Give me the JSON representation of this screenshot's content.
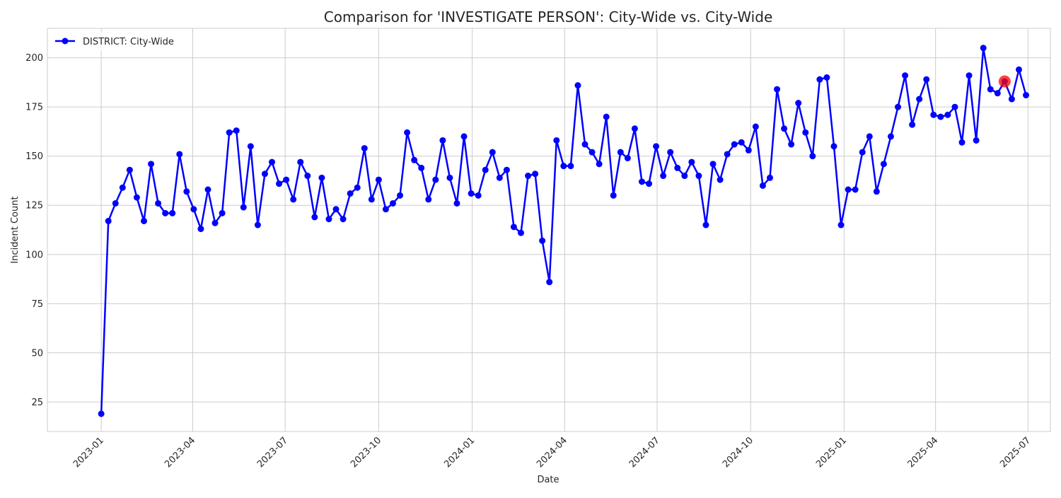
{
  "chart_data": {
    "type": "line",
    "title": "Comparison for 'INVESTIGATE PERSON': City-Wide vs. City-Wide",
    "xlabel": "Date",
    "ylabel": "Incident Count",
    "xlim": [
      "2022-11-09",
      "2025-07-23"
    ],
    "ylim": [
      10,
      215
    ],
    "grid": true,
    "legend_position": "top-left",
    "x_ticks": [
      "2023-01",
      "2023-04",
      "2023-07",
      "2023-10",
      "2024-01",
      "2024-04",
      "2024-07",
      "2024-10",
      "2025-01",
      "2025-04",
      "2025-07"
    ],
    "y_ticks": [
      25,
      50,
      75,
      100,
      125,
      150,
      175,
      200
    ],
    "series": [
      {
        "name": "DISTRICT: City-Wide",
        "color": "#0000ff",
        "marker": "circle",
        "points": [
          [
            "2023-01-01",
            19
          ],
          [
            "2023-01-08",
            117
          ],
          [
            "2023-01-15",
            126
          ],
          [
            "2023-01-22",
            134
          ],
          [
            "2023-01-29",
            143
          ],
          [
            "2023-02-05",
            129
          ],
          [
            "2023-02-12",
            117
          ],
          [
            "2023-02-19",
            146
          ],
          [
            "2023-02-26",
            126
          ],
          [
            "2023-03-05",
            121
          ],
          [
            "2023-03-12",
            121
          ],
          [
            "2023-03-19",
            151
          ],
          [
            "2023-03-26",
            132
          ],
          [
            "2023-04-02",
            123
          ],
          [
            "2023-04-09",
            113
          ],
          [
            "2023-04-16",
            133
          ],
          [
            "2023-04-23",
            116
          ],
          [
            "2023-04-30",
            121
          ],
          [
            "2023-05-07",
            162
          ],
          [
            "2023-05-14",
            163
          ],
          [
            "2023-05-21",
            124
          ],
          [
            "2023-05-28",
            155
          ],
          [
            "2023-06-04",
            115
          ],
          [
            "2023-06-11",
            141
          ],
          [
            "2023-06-18",
            147
          ],
          [
            "2023-06-25",
            136
          ],
          [
            "2023-07-02",
            138
          ],
          [
            "2023-07-09",
            128
          ],
          [
            "2023-07-16",
            147
          ],
          [
            "2023-07-23",
            140
          ],
          [
            "2023-07-30",
            119
          ],
          [
            "2023-08-06",
            139
          ],
          [
            "2023-08-13",
            118
          ],
          [
            "2023-08-20",
            123
          ],
          [
            "2023-08-27",
            118
          ],
          [
            "2023-09-03",
            131
          ],
          [
            "2023-09-10",
            134
          ],
          [
            "2023-09-17",
            154
          ],
          [
            "2023-09-24",
            128
          ],
          [
            "2023-10-01",
            138
          ],
          [
            "2023-10-08",
            123
          ],
          [
            "2023-10-15",
            126
          ],
          [
            "2023-10-22",
            130
          ],
          [
            "2023-10-29",
            162
          ],
          [
            "2023-11-05",
            148
          ],
          [
            "2023-11-12",
            144
          ],
          [
            "2023-11-19",
            128
          ],
          [
            "2023-11-26",
            138
          ],
          [
            "2023-12-03",
            158
          ],
          [
            "2023-12-10",
            139
          ],
          [
            "2023-12-17",
            126
          ],
          [
            "2023-12-24",
            160
          ],
          [
            "2023-12-31",
            131
          ],
          [
            "2024-01-07",
            130
          ],
          [
            "2024-01-14",
            143
          ],
          [
            "2024-01-21",
            152
          ],
          [
            "2024-01-28",
            139
          ],
          [
            "2024-02-04",
            143
          ],
          [
            "2024-02-11",
            114
          ],
          [
            "2024-02-18",
            111
          ],
          [
            "2024-02-25",
            140
          ],
          [
            "2024-03-03",
            141
          ],
          [
            "2024-03-10",
            107
          ],
          [
            "2024-03-17",
            86
          ],
          [
            "2024-03-24",
            158
          ],
          [
            "2024-03-31",
            145
          ],
          [
            "2024-04-07",
            145
          ],
          [
            "2024-04-14",
            186
          ],
          [
            "2024-04-21",
            156
          ],
          [
            "2024-04-28",
            152
          ],
          [
            "2024-05-05",
            146
          ],
          [
            "2024-05-12",
            170
          ],
          [
            "2024-05-19",
            130
          ],
          [
            "2024-05-26",
            152
          ],
          [
            "2024-06-02",
            149
          ],
          [
            "2024-06-09",
            164
          ],
          [
            "2024-06-16",
            137
          ],
          [
            "2024-06-23",
            136
          ],
          [
            "2024-06-30",
            155
          ],
          [
            "2024-07-07",
            140
          ],
          [
            "2024-07-14",
            152
          ],
          [
            "2024-07-21",
            144
          ],
          [
            "2024-07-28",
            140
          ],
          [
            "2024-08-04",
            147
          ],
          [
            "2024-08-11",
            140
          ],
          [
            "2024-08-18",
            115
          ],
          [
            "2024-08-25",
            146
          ],
          [
            "2024-09-01",
            138
          ],
          [
            "2024-09-08",
            151
          ],
          [
            "2024-09-15",
            156
          ],
          [
            "2024-09-22",
            157
          ],
          [
            "2024-09-29",
            153
          ],
          [
            "2024-10-06",
            165
          ],
          [
            "2024-10-13",
            135
          ],
          [
            "2024-10-20",
            139
          ],
          [
            "2024-10-27",
            184
          ],
          [
            "2024-11-03",
            164
          ],
          [
            "2024-11-10",
            156
          ],
          [
            "2024-11-17",
            177
          ],
          [
            "2024-11-24",
            162
          ],
          [
            "2024-12-01",
            150
          ],
          [
            "2024-12-08",
            189
          ],
          [
            "2024-12-15",
            190
          ],
          [
            "2024-12-22",
            155
          ],
          [
            "2024-12-29",
            115
          ],
          [
            "2025-01-05",
            133
          ],
          [
            "2025-01-12",
            133
          ],
          [
            "2025-01-19",
            152
          ],
          [
            "2025-01-26",
            160
          ],
          [
            "2025-02-02",
            132
          ],
          [
            "2025-02-09",
            146
          ],
          [
            "2025-02-16",
            160
          ],
          [
            "2025-02-23",
            175
          ],
          [
            "2025-03-02",
            191
          ],
          [
            "2025-03-09",
            166
          ],
          [
            "2025-03-16",
            179
          ],
          [
            "2025-03-23",
            189
          ],
          [
            "2025-03-30",
            171
          ],
          [
            "2025-04-06",
            170
          ],
          [
            "2025-04-13",
            171
          ],
          [
            "2025-04-20",
            175
          ],
          [
            "2025-04-27",
            157
          ],
          [
            "2025-05-04",
            191
          ],
          [
            "2025-05-11",
            158
          ],
          [
            "2025-05-18",
            205
          ],
          [
            "2025-05-25",
            184
          ],
          [
            "2025-06-01",
            182
          ],
          [
            "2025-06-08",
            188
          ],
          [
            "2025-06-15",
            179
          ],
          [
            "2025-06-22",
            194
          ],
          [
            "2025-06-29",
            181
          ]
        ]
      }
    ],
    "highlight": {
      "date": "2025-06-08",
      "value": 188,
      "color": "#ff0000"
    }
  }
}
